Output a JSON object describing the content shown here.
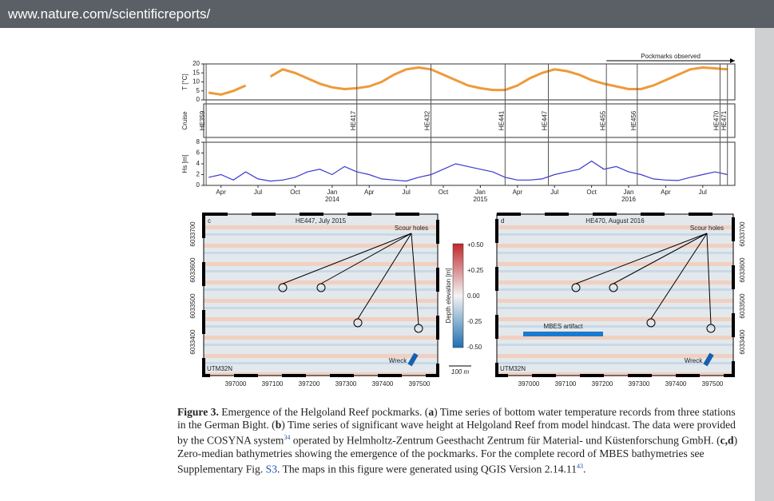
{
  "browser": {
    "url": "www.nature.com/scientificreports/"
  },
  "figure": {
    "panel_a": {
      "ylabel": "T [°C]",
      "ylim": [
        0,
        20
      ],
      "yticks": [
        20,
        15,
        10,
        5,
        0
      ],
      "color": "#ee9a3a",
      "x": [
        2,
        3,
        4,
        5,
        6,
        7,
        8,
        9,
        10,
        11,
        12,
        13,
        14,
        15,
        16,
        17,
        18,
        19,
        20,
        21,
        22,
        23,
        24,
        25,
        26,
        27,
        28,
        29,
        30,
        31,
        32,
        33,
        34,
        35,
        36,
        37,
        38,
        39,
        40,
        41,
        42,
        43,
        44
      ],
      "values": [
        4,
        3,
        5,
        8,
        null,
        13,
        17,
        15,
        12,
        9,
        7,
        6,
        6.5,
        7.5,
        10,
        14,
        17,
        18,
        17,
        14,
        11,
        8,
        6.5,
        5.5,
        5.5,
        8,
        12,
        15,
        17,
        16,
        14,
        11,
        9,
        7.5,
        6,
        6,
        8,
        11,
        14,
        17,
        18,
        17.5,
        17
      ],
      "pockmarks": {
        "label": "Pockmarks observed",
        "x_start": 34.2
      }
    },
    "cruise": {
      "label": "Cruise",
      "items": [
        {
          "label": "HE359",
          "x": 1.8
        },
        {
          "label": "HE417",
          "x": 14
        },
        {
          "label": "HE432",
          "x": 20
        },
        {
          "label": "HE441",
          "x": 26
        },
        {
          "label": "HE447",
          "x": 29.5
        },
        {
          "label": "HE455",
          "x": 34.2
        },
        {
          "label": "HE456",
          "x": 36.7
        },
        {
          "label": "HE470",
          "x": 43.4
        },
        {
          "label": "HE471",
          "x": 44
        }
      ]
    },
    "panel_b": {
      "ylabel": "Hs [m]",
      "ylim": [
        0,
        8
      ],
      "yticks": [
        8,
        6,
        4,
        2,
        0
      ],
      "color": "#3a3ad0",
      "x": [
        2,
        3,
        4,
        5,
        6,
        7,
        8,
        9,
        10,
        11,
        12,
        13,
        14,
        15,
        16,
        17,
        18,
        19,
        20,
        21,
        22,
        23,
        24,
        25,
        26,
        27,
        28,
        29,
        30,
        31,
        32,
        33,
        34,
        35,
        36,
        37,
        38,
        39,
        40,
        41,
        42,
        43,
        44
      ],
      "values": [
        1.5,
        2,
        1,
        2.5,
        1.2,
        0.8,
        1,
        1.5,
        2.5,
        3,
        2,
        3.5,
        2.5,
        2,
        1.2,
        1,
        0.8,
        1.5,
        2,
        3,
        4,
        3.5,
        3,
        2.5,
        1.5,
        1,
        1,
        1.2,
        2,
        2.5,
        3,
        4.5,
        3,
        3.5,
        2.5,
        2,
        1.2,
        1,
        0.9,
        1.5,
        2,
        2.5,
        2
      ]
    },
    "xlim": [
      1.6,
      44.6
    ],
    "xticks": [
      {
        "value": 3,
        "label": "Apr"
      },
      {
        "value": 6,
        "label": "Jul"
      },
      {
        "value": 9,
        "label": "Oct"
      },
      {
        "value": 12,
        "label": "Jan"
      },
      {
        "value": 15,
        "label": "Apr"
      },
      {
        "value": 18,
        "label": "Jul"
      },
      {
        "value": 21,
        "label": "Oct"
      },
      {
        "value": 24,
        "label": "Jan"
      },
      {
        "value": 27,
        "label": "Apr"
      },
      {
        "value": 30,
        "label": "Jul"
      },
      {
        "value": 33,
        "label": "Oct"
      },
      {
        "value": 36,
        "label": "Jan"
      },
      {
        "value": 39,
        "label": "Apr"
      },
      {
        "value": 42,
        "label": "Jul"
      }
    ],
    "years": [
      {
        "value": 12,
        "label": "2014"
      },
      {
        "value": 24,
        "label": "2015"
      },
      {
        "value": 36,
        "label": "2016"
      }
    ],
    "map_c": {
      "letter": "c",
      "title": "HE447, July 2015",
      "scour": "Scour holes",
      "wreck": "Wreck",
      "crs": "UTM32N"
    },
    "map_d": {
      "letter": "d",
      "title": "HE470, August 2016",
      "scour": "Scour holes",
      "artifact": "MBES artifact",
      "wreck": "Wreck",
      "crs": "UTM32N"
    },
    "map_yticks": [
      "6033700",
      "6033600",
      "6033500",
      "6033400"
    ],
    "map_xticks": [
      "397000",
      "397100",
      "397200",
      "397300",
      "397400",
      "397500"
    ],
    "colorbar": {
      "label": "Depth elevation [m]",
      "ticks": [
        "+0.50",
        "+0.25",
        "0.00",
        "-0.25",
        "-0.50"
      ],
      "scale": "100 m"
    },
    "caption": [
      {
        "text": "Figure 3.",
        "style": "bold"
      },
      {
        "text": "  Emergence of the Helgoland Reef pockmarks. (",
        "style": "normal"
      },
      {
        "text": "a",
        "style": "bold"
      },
      {
        "text": ") Time series of bottom water temperature records from three stations in the German Bight. (",
        "style": "normal"
      },
      {
        "text": "b",
        "style": "bold"
      },
      {
        "text": ") Time series of significant wave height at Helgoland Reef from model hindcast. The data were provided by the COSYNA system",
        "style": "normal"
      },
      {
        "text": "34",
        "style": "sup"
      },
      {
        "text": " operated by Helmholtz-Zentrum Geesthacht Zentrum für Material- und Küstenforschung GmbH. (",
        "style": "normal"
      },
      {
        "text": "c,d",
        "style": "bold"
      },
      {
        "text": ") Zero-median bathymetries showing the emergence of the pockmarks. For the complete record of MBES bathymetries see Supplementary Fig. ",
        "style": "normal"
      },
      {
        "text": "S3",
        "style": "link"
      },
      {
        "text": ". The maps in this figure were generated using QGIS Version 2.14.11",
        "style": "normal"
      },
      {
        "text": "43",
        "style": "sup"
      },
      {
        "text": ".",
        "style": "normal"
      }
    ]
  }
}
